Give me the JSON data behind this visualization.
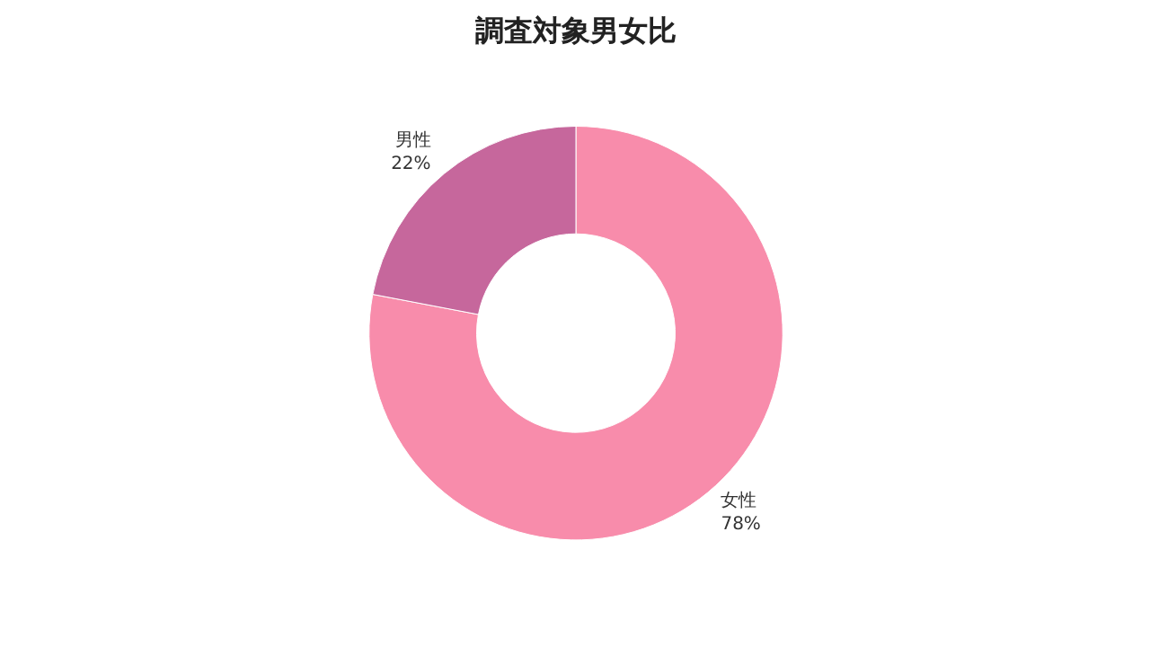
{
  "chart_data": {
    "type": "donut",
    "title": "調査対象男女比",
    "categories": [
      "女性",
      "男性"
    ],
    "values": [
      78,
      22
    ],
    "value_labels": [
      "78%",
      "22%"
    ],
    "colors": [
      "#f88cab",
      "#c6679c"
    ]
  }
}
